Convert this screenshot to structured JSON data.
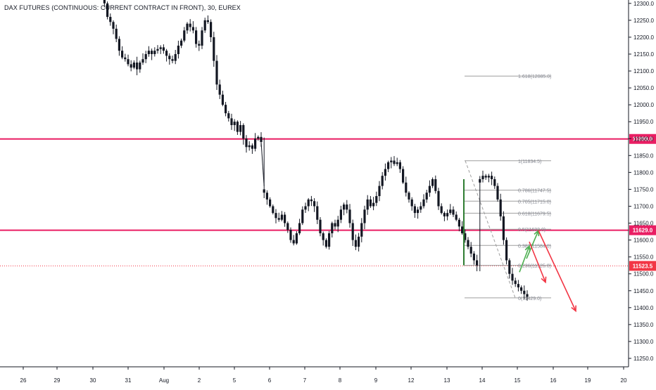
{
  "header": {
    "symbol_title": "DAX FUTURES (CONTINUOUS: CURRENT CONTRACT IN FRONT), 30, EUREX"
  },
  "colors": {
    "candle": "#131722",
    "wick": "#131722",
    "level": "#e91e63",
    "dotted_level": "#f23645",
    "price_tag": "#e91e63",
    "price_tag_red": "#f23645",
    "fib_line": "#9e9e9e",
    "fib_text": "#868993",
    "arrow_green": "#4caf50",
    "arrow_red": "#f23645",
    "grid_text": "#131722",
    "axis_line": "#131722"
  },
  "chart_data": {
    "type": "candlestick",
    "title": "DAX FUTURES (CONTINUOUS: CURRENT CONTRACT IN FRONT), 30, EUREX",
    "y_axis": {
      "min": 11225,
      "max": 12310,
      "ticks": [
        12300.0,
        12250.0,
        12200.0,
        12150.0,
        12100.0,
        12050.0,
        12000.0,
        11950.0,
        11900.0,
        11850.0,
        11800.0,
        11750.0,
        11700.0,
        11650.0,
        11600.0,
        11550.0,
        11500.0,
        11450.0,
        11400.0,
        11350.0,
        11300.0,
        11250.0
      ],
      "tick_labels": [
        "12300.0",
        "12250.0",
        "12200.0",
        "12150.0",
        "12100.0",
        "12050.0",
        "12000.0",
        "11950.0",
        "11900.0",
        "11850.0",
        "11800.0",
        "11750.0",
        "11700.0",
        "11650.0",
        "11600.0",
        "11550.0",
        "11500.0",
        "11450.0",
        "11400.0",
        "11350.0",
        "11300.0",
        "11250.0"
      ]
    },
    "x_axis": {
      "labels": [
        "26",
        "29",
        "30",
        "31",
        "Aug",
        "2",
        "5",
        "6",
        "7",
        "8",
        "9",
        "12",
        "13",
        "14",
        "15",
        "16",
        "19",
        "20"
      ]
    },
    "horizontal_levels": [
      {
        "value": 11899.0,
        "label": "11899.0",
        "style": "solid"
      },
      {
        "value": 11629.0,
        "label": "11629.0",
        "style": "solid"
      },
      {
        "value": 11523.5,
        "label": "11523.5",
        "style": "dotted"
      }
    ],
    "fibonacci": {
      "high": 11834.5,
      "low": 11429.0,
      "levels": [
        {
          "label": "1.618(12085.0)",
          "value": 12085.0
        },
        {
          "label": "1(11834.5)",
          "value": 11834.5
        },
        {
          "label": "0.786(11747.5)",
          "value": 11747.5
        },
        {
          "label": "0.705(11715.0)",
          "value": 11715.0
        },
        {
          "label": "0.618(11679.5)",
          "value": 11679.5
        },
        {
          "label": "0.5(11632.0)",
          "value": 11632.0
        },
        {
          "label": "0.382(11584.0)",
          "value": 11584.0
        },
        {
          "label": "0.236(11525.0)",
          "value": 11525.0
        },
        {
          "label": "0(11429.0)",
          "value": 11429.0
        }
      ]
    },
    "projection_arrows": [
      {
        "color": "green",
        "from": 11505,
        "to": 11582
      },
      {
        "color": "green",
        "from": 11545,
        "to": 11628
      },
      {
        "color": "red",
        "from": 11595,
        "to": 11475
      },
      {
        "color": "red",
        "from": 11628,
        "to": 11390
      }
    ],
    "price_path": [
      [
        0,
        12340
      ],
      [
        2,
        12300
      ],
      [
        3,
        12260
      ],
      [
        4,
        12245
      ],
      [
        5,
        12225
      ],
      [
        6,
        12195
      ],
      [
        7,
        12160
      ],
      [
        8,
        12140
      ],
      [
        9,
        12135
      ],
      [
        10,
        12120
      ],
      [
        11,
        12110
      ],
      [
        12,
        12125
      ],
      [
        13,
        12105
      ],
      [
        14,
        12125
      ],
      [
        15,
        12135
      ],
      [
        16,
        12150
      ],
      [
        17,
        12160
      ],
      [
        18,
        12150
      ],
      [
        19,
        12160
      ],
      [
        20,
        12165
      ],
      [
        21,
        12170
      ],
      [
        22,
        12160
      ],
      [
        23,
        12145
      ],
      [
        24,
        12135
      ],
      [
        25,
        12130
      ],
      [
        26,
        12150
      ],
      [
        27,
        12175
      ],
      [
        28,
        12190
      ],
      [
        29,
        12220
      ],
      [
        30,
        12240
      ],
      [
        31,
        12230
      ],
      [
        32,
        12220
      ],
      [
        33,
        12180
      ],
      [
        34,
        12175
      ],
      [
        35,
        12220
      ],
      [
        36,
        12250
      ],
      [
        37,
        12245
      ],
      [
        38,
        12200
      ],
      [
        39,
        12130
      ],
      [
        40,
        12060
      ],
      [
        41,
        12030
      ],
      [
        42,
        12000
      ],
      [
        43,
        11975
      ],
      [
        44,
        11960
      ],
      [
        45,
        11940
      ],
      [
        46,
        11950
      ],
      [
        47,
        11920
      ],
      [
        48,
        11940
      ],
      [
        49,
        11900
      ],
      [
        50,
        11875
      ],
      [
        51,
        11880
      ],
      [
        52,
        11870
      ],
      [
        53,
        11900
      ],
      [
        54,
        11905
      ],
      [
        55,
        11890
      ],
      [
        56,
        11740
      ],
      [
        57,
        11720
      ],
      [
        58,
        11700
      ],
      [
        59,
        11680
      ],
      [
        60,
        11665
      ],
      [
        61,
        11660
      ],
      [
        62,
        11675
      ],
      [
        63,
        11650
      ],
      [
        64,
        11630
      ],
      [
        65,
        11600
      ],
      [
        66,
        11590
      ],
      [
        67,
        11620
      ],
      [
        68,
        11650
      ],
      [
        69,
        11690
      ],
      [
        70,
        11700
      ],
      [
        71,
        11720
      ],
      [
        72,
        11715
      ],
      [
        73,
        11700
      ],
      [
        74,
        11660
      ],
      [
        75,
        11620
      ],
      [
        76,
        11600
      ],
      [
        77,
        11580
      ],
      [
        78,
        11620
      ],
      [
        79,
        11650
      ],
      [
        80,
        11640
      ],
      [
        81,
        11660
      ],
      [
        82,
        11690
      ],
      [
        83,
        11705
      ],
      [
        84,
        11690
      ],
      [
        85,
        11650
      ],
      [
        86,
        11600
      ],
      [
        87,
        11580
      ],
      [
        88,
        11610
      ],
      [
        89,
        11650
      ],
      [
        90,
        11690
      ],
      [
        91,
        11720
      ],
      [
        92,
        11700
      ],
      [
        93,
        11710
      ],
      [
        94,
        11730
      ],
      [
        95,
        11760
      ],
      [
        96,
        11790
      ],
      [
        97,
        11810
      ],
      [
        98,
        11830
      ],
      [
        99,
        11835
      ],
      [
        100,
        11825
      ],
      [
        101,
        11830
      ],
      [
        102,
        11810
      ],
      [
        103,
        11770
      ],
      [
        104,
        11740
      ],
      [
        105,
        11720
      ],
      [
        106,
        11700
      ],
      [
        107,
        11680
      ],
      [
        108,
        11690
      ],
      [
        109,
        11700
      ],
      [
        110,
        11720
      ],
      [
        111,
        11740
      ],
      [
        112,
        11760
      ],
      [
        113,
        11780
      ],
      [
        114,
        11745
      ],
      [
        115,
        11700
      ],
      [
        116,
        11680
      ],
      [
        117,
        11670
      ],
      [
        118,
        11680
      ],
      [
        119,
        11690
      ],
      [
        120,
        11675
      ],
      [
        121,
        11660
      ],
      [
        122,
        11640
      ],
      [
        123,
        11620
      ],
      [
        124,
        11600
      ],
      [
        125,
        11580
      ],
      [
        126,
        11560
      ],
      [
        127,
        11540
      ],
      [
        128,
        11525
      ],
      [
        129,
        11780
      ],
      [
        130,
        11790
      ],
      [
        131,
        11785
      ],
      [
        132,
        11790
      ],
      [
        133,
        11780
      ],
      [
        134,
        11760
      ],
      [
        135,
        11720
      ],
      [
        136,
        11670
      ],
      [
        137,
        11600
      ],
      [
        138,
        11540
      ],
      [
        139,
        11500
      ],
      [
        140,
        11480
      ],
      [
        141,
        11470
      ],
      [
        142,
        11460
      ],
      [
        143,
        11450
      ],
      [
        144,
        11440
      ],
      [
        145,
        11432
      ]
    ]
  }
}
